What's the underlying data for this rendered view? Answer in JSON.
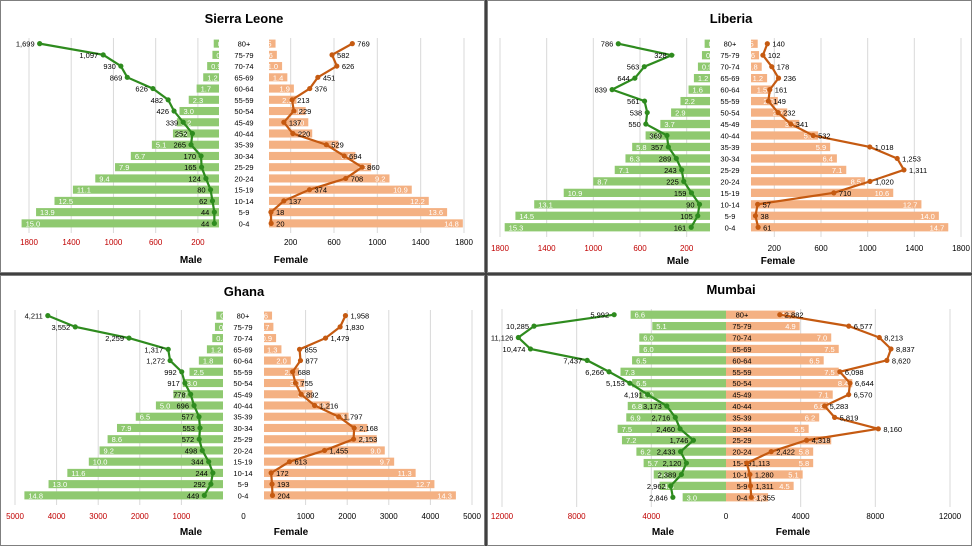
{
  "colors": {
    "male_bar": "#8fc970",
    "female_bar": "#f4b183",
    "male_line": "#2e8b1e",
    "female_line": "#c55a11",
    "grid": "#d9d9d9",
    "left_tick": "#c00000"
  },
  "chart_data": [
    {
      "type": "bar",
      "title": "Sierra Leone",
      "xlabel_male": "Male",
      "xlabel_female": "Female",
      "categories": [
        "0-4",
        "5-9",
        "10-14",
        "15-19",
        "20-24",
        "25-29",
        "30-34",
        "35-39",
        "40-44",
        "45-49",
        "50-54",
        "55-59",
        "60-64",
        "65-69",
        "70-74",
        "75-79",
        "80+"
      ],
      "series": [
        {
          "name": "Male %",
          "values": [
            15.0,
            13.9,
            12.5,
            11.1,
            9.4,
            7.9,
            6.7,
            5.1,
            3.5,
            3.2,
            3.0,
            2.3,
            1.7,
            1.2,
            0.9,
            0.5,
            0.4
          ]
        },
        {
          "name": "Female %",
          "values": [
            14.8,
            13.6,
            12.2,
            10.9,
            9.2,
            7.8,
            6.6,
            5.3,
            3.3,
            3.0,
            2.8,
            2.1,
            1.9,
            1.4,
            1.0,
            0.6,
            0.5
          ]
        },
        {
          "name": "Male deaths",
          "values": [
            44,
            44,
            62,
            80,
            124,
            165,
            170,
            265,
            252,
            339,
            426,
            482,
            626,
            869,
            930,
            1097,
            1699
          ]
        },
        {
          "name": "Female deaths",
          "values": [
            20,
            18,
            137,
            374,
            708,
            860,
            694,
            529,
            220,
            137,
            229,
            213,
            376,
            451,
            626,
            582,
            769
          ]
        }
      ],
      "axis_ticks_left": [
        "1800",
        "1400",
        "1000",
        "600",
        "200"
      ],
      "axis_ticks_right": [
        "200",
        "600",
        "1000",
        "1400",
        "1800"
      ],
      "axis_max": 1800
    },
    {
      "type": "bar",
      "title": "Liberia",
      "xlabel_male": "Male",
      "xlabel_female": "Female",
      "categories": [
        "0-4",
        "5-9",
        "10-14",
        "15-19",
        "20-24",
        "25-29",
        "30-34",
        "35-39",
        "40-44",
        "45-49",
        "50-54",
        "55-59",
        "60-64",
        "65-69",
        "70-74",
        "75-79",
        "80+"
      ],
      "series": [
        {
          "name": "Male %",
          "values": [
            15.3,
            14.5,
            13.1,
            10.9,
            8.7,
            7.1,
            6.3,
            5.8,
            4.8,
            3.7,
            2.9,
            2.2,
            1.6,
            1.2,
            0.9,
            0.6,
            0.4
          ]
        },
        {
          "name": "Female %",
          "values": [
            14.7,
            14.0,
            12.7,
            10.6,
            8.5,
            7.1,
            6.4,
            5.9,
            5.0,
            3.6,
            2.7,
            2.0,
            1.5,
            1.2,
            0.8,
            0.6,
            0.5
          ]
        },
        {
          "name": "Male deaths",
          "values": [
            161,
            105,
            90,
            159,
            225,
            243,
            289,
            357,
            369,
            550,
            538,
            561,
            839,
            644,
            563,
            328,
            786
          ]
        },
        {
          "name": "Female deaths",
          "values": [
            61,
            38,
            57,
            710,
            1020,
            1311,
            1253,
            1018,
            532,
            341,
            232,
            149,
            161,
            236,
            178,
            102,
            140
          ]
        }
      ],
      "axis_ticks_left": [
        "1800",
        "1400",
        "1000",
        "600",
        "200"
      ],
      "axis_ticks_right": [
        "200",
        "600",
        "1000",
        "1400",
        "1800"
      ],
      "axis_max": 1800
    },
    {
      "type": "bar",
      "title": "Ghana",
      "xlabel_male": "Male",
      "xlabel_female": "Female",
      "categories": [
        "0-4",
        "5-9",
        "10-14",
        "15-19",
        "20-24",
        "25-29",
        "30-34",
        "35-39",
        "40-44",
        "45-49",
        "50-54",
        "55-59",
        "60-64",
        "65-69",
        "70-74",
        "75-79",
        "80+"
      ],
      "series": [
        {
          "name": "Male %",
          "values": [
            14.8,
            13.0,
            11.6,
            10.0,
            9.2,
            8.6,
            7.9,
            6.5,
            5.0,
            3.7,
            3.0,
            2.5,
            1.8,
            1.2,
            0.8,
            0.6,
            0.5
          ]
        },
        {
          "name": "Female %",
          "values": [
            14.3,
            12.7,
            11.3,
            9.7,
            9.0,
            8.4,
            7.7,
            6.3,
            4.9,
            3.6,
            3.0,
            2.6,
            2.0,
            1.3,
            0.9,
            0.7,
            0.6
          ]
        },
        {
          "name": "Male deaths",
          "values": [
            449,
            292,
            244,
            344,
            498,
            572,
            553,
            577,
            696,
            778,
            917,
            992,
            1272,
            1317,
            2259,
            3552,
            4211
          ]
        },
        {
          "name": "Female deaths",
          "values": [
            204,
            193,
            172,
            613,
            1455,
            2153,
            2168,
            1797,
            1216,
            892,
            755,
            688,
            877,
            855,
            1479,
            1830,
            1958
          ]
        }
      ],
      "axis_ticks_left": [
        "5000",
        "4000",
        "3000",
        "2000",
        "1000"
      ],
      "axis_ticks_right": [
        "1000",
        "2000",
        "3000",
        "4000",
        "5000"
      ],
      "axis_zero": "0",
      "axis_max": 5000
    },
    {
      "type": "bar",
      "title": "Mumbai",
      "xlabel_male": "Male",
      "xlabel_female": "Female",
      "categories": [
        "0-4",
        "5-9",
        "10-14",
        "15-19",
        "20-24",
        "25-29",
        "30-34",
        "35-39",
        "40-44",
        "45-49",
        "50-54",
        "55-59",
        "60-64",
        "65-69",
        "70-74",
        "75-79",
        "80+"
      ],
      "series": [
        {
          "name": "Male %",
          "values": [
            3.0,
            4.6,
            5.0,
            5.7,
            6.2,
            7.2,
            7.5,
            6.9,
            6.8,
            6.0,
            6.5,
            7.3,
            6.5,
            6.0,
            6.0,
            5.1,
            6.6
          ]
        },
        {
          "name": "Female %",
          "values": [
            2.8,
            4.5,
            5.1,
            5.8,
            5.8,
            7.0,
            5.5,
            6.2,
            6.8,
            7.1,
            8.4,
            7.5,
            6.5,
            7.5,
            7.0,
            4.9,
            4.6
          ]
        },
        {
          "name": "Male deaths",
          "values": [
            2846,
            2962,
            2389,
            2120,
            2433,
            1746,
            2460,
            2716,
            3173,
            4191,
            5153,
            6266,
            7437,
            10474,
            11126,
            10285,
            5992
          ]
        },
        {
          "name": "Female deaths",
          "values": [
            1355,
            1311,
            1280,
            1113,
            2422,
            4318,
            8160,
            5819,
            5283,
            6570,
            6644,
            6098,
            8620,
            8837,
            8213,
            6577,
            2882
          ]
        }
      ],
      "axis_ticks_left": [
        "12000",
        "8000",
        "4000"
      ],
      "axis_ticks_right": [
        "4000",
        "8000",
        "12000"
      ],
      "axis_zero": "0",
      "axis_max": 12000
    }
  ]
}
